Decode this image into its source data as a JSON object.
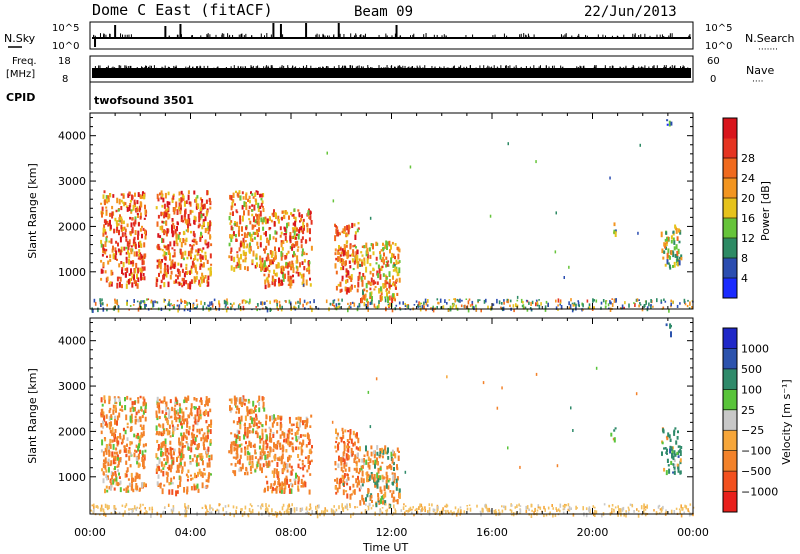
{
  "header": {
    "station": "Dome C East (fitACF)",
    "beam": "Beam 09",
    "date": "22/Jun/2013"
  },
  "nsky_panel": {
    "left_label": "N.Sky",
    "right_label": "N.Search",
    "right_dots": "·······",
    "left_ticks": [
      "10^5",
      "10^0"
    ],
    "right_ticks": [
      "10^5",
      "10^0"
    ]
  },
  "freq_panel": {
    "left_label_top": "Freq.",
    "left_label_bottom": "[MHz]",
    "right_label": "Nave",
    "right_dots": "····",
    "left_ticks": [
      "18",
      "8"
    ],
    "right_ticks": [
      "60",
      "0"
    ]
  },
  "cpid": {
    "label": "CPID",
    "program": "twofsound 3501"
  },
  "power_panel": {
    "ylabel": "Slant Range [km]",
    "yticks": [
      "1000",
      "2000",
      "3000",
      "4000"
    ],
    "colorbar_label": "Power [dB]",
    "colorbar_ticks": [
      "4",
      "8",
      "12",
      "16",
      "20",
      "24",
      "28"
    ],
    "colorbar_colors": [
      "#1a2bff",
      "#2b4db0",
      "#2d8a64",
      "#66c43a",
      "#e6c31c",
      "#f39520",
      "#f06a1e",
      "#e53421",
      "#d8151c"
    ]
  },
  "velocity_panel": {
    "ylabel": "Slant Range [km]",
    "yticks": [
      "1000",
      "2000",
      "3000",
      "4000"
    ],
    "colorbar_label": "Velocity [m s⁻¹]",
    "colorbar_ticks": [
      "-1000",
      "-500",
      "-100",
      "-25",
      "25",
      "100",
      "500",
      "1000"
    ],
    "colorbar_colors": [
      "#e8201c",
      "#f2501e",
      "#f3822a",
      "#f6a63a",
      "#c8c8c8",
      "#59c43a",
      "#2f8a6a",
      "#2c53ad",
      "#1f28c8"
    ]
  },
  "xaxis": {
    "label": "Time UT",
    "ticks": [
      "00:00",
      "04:00",
      "08:00",
      "12:00",
      "16:00",
      "20:00",
      "00:00"
    ]
  },
  "chart_data": {
    "type": "heatmap",
    "x_unit": "hours UT",
    "xlim": [
      0,
      24
    ],
    "ylim": [
      180,
      4500
    ],
    "power_scale": [
      0,
      32
    ],
    "velocity_scale": [
      -1000,
      1000
    ],
    "scatter_regions": [
      {
        "t0": 0.4,
        "t1": 2.2,
        "r0": 700,
        "r1": 2800,
        "power": 22,
        "velocity": -250
      },
      {
        "t0": 2.6,
        "t1": 4.8,
        "r0": 700,
        "r1": 2800,
        "power": 22,
        "velocity": -250
      },
      {
        "t0": 5.5,
        "t1": 6.9,
        "r0": 1100,
        "r1": 2800,
        "power": 20,
        "velocity": -250
      },
      {
        "t0": 6.9,
        "t1": 8.8,
        "r0": 700,
        "r1": 2400,
        "power": 21,
        "velocity": -300
      },
      {
        "t0": 9.7,
        "t1": 10.7,
        "r0": 600,
        "r1": 2100,
        "power": 22,
        "velocity": -350
      },
      {
        "t0": 10.7,
        "t1": 12.3,
        "r0": 400,
        "r1": 1700,
        "power": 18,
        "velocity": -120
      },
      {
        "t0": 20.7,
        "t1": 20.9,
        "r0": 1800,
        "r1": 2100,
        "power": 12,
        "velocity": 80
      },
      {
        "t0": 22.7,
        "t1": 23.5,
        "r0": 1100,
        "r1": 2100,
        "power": 14,
        "velocity": 200
      },
      {
        "t0": 22.9,
        "t1": 23.1,
        "r0": 4200,
        "r1": 4450,
        "power": 6,
        "velocity": 500
      }
    ],
    "ground_scatter": {
      "r0": 180,
      "r1": 420,
      "velocity": 0
    }
  }
}
